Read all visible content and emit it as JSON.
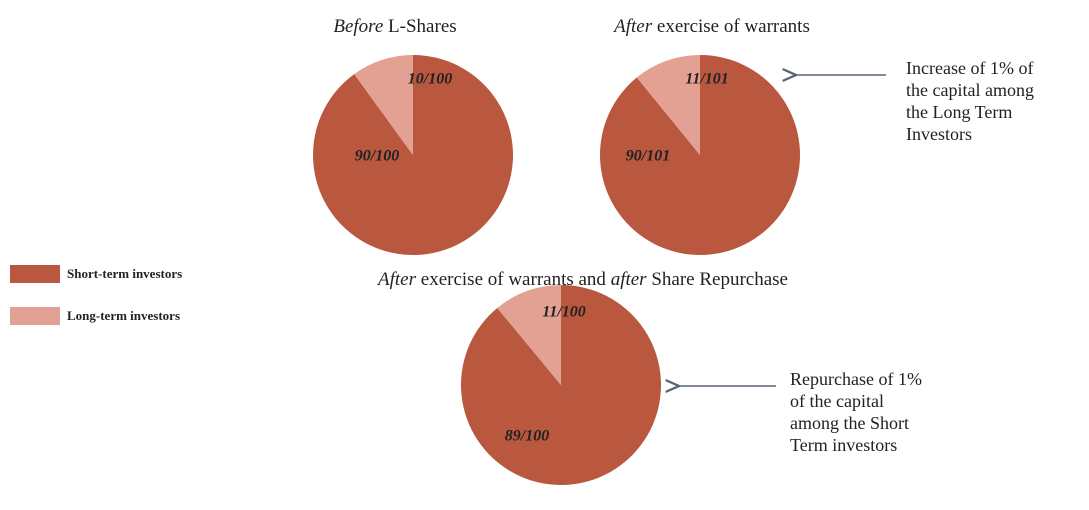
{
  "legend": [
    {
      "name": "Short-term investors",
      "color": "#b9573f"
    },
    {
      "name": "Long-term investors",
      "color": "#e3a193"
    }
  ],
  "chart_data": [
    {
      "type": "pie",
      "title": [
        {
          "text": "Before",
          "style": "italic"
        },
        {
          "text": " L-Shares"
        }
      ],
      "values": [
        90,
        10
      ],
      "value_labels": [
        "90/100",
        "10/100"
      ]
    },
    {
      "type": "pie",
      "title": [
        {
          "text": "After",
          "style": "italic"
        },
        {
          "text": " exercise of warrants"
        }
      ],
      "values": [
        90,
        11
      ],
      "value_labels": [
        "90/101",
        "11/101"
      ]
    },
    {
      "type": "pie",
      "title": [
        {
          "text": "After",
          "style": "italic"
        },
        {
          "text": " exercise of warrants and "
        },
        {
          "text": "after",
          "style": "italic"
        },
        {
          "text": " Share Repurchase"
        }
      ],
      "values": [
        89,
        11
      ],
      "value_labels": [
        "89/100",
        "11/100"
      ]
    }
  ],
  "annotations": [
    {
      "lines": [
        "Increase of 1% of",
        "the capital among",
        "the Long Term",
        "Investors"
      ]
    },
    {
      "lines": [
        "Repurchase of 1%",
        "of the capital",
        "among the Short",
        "Term investors"
      ]
    }
  ]
}
